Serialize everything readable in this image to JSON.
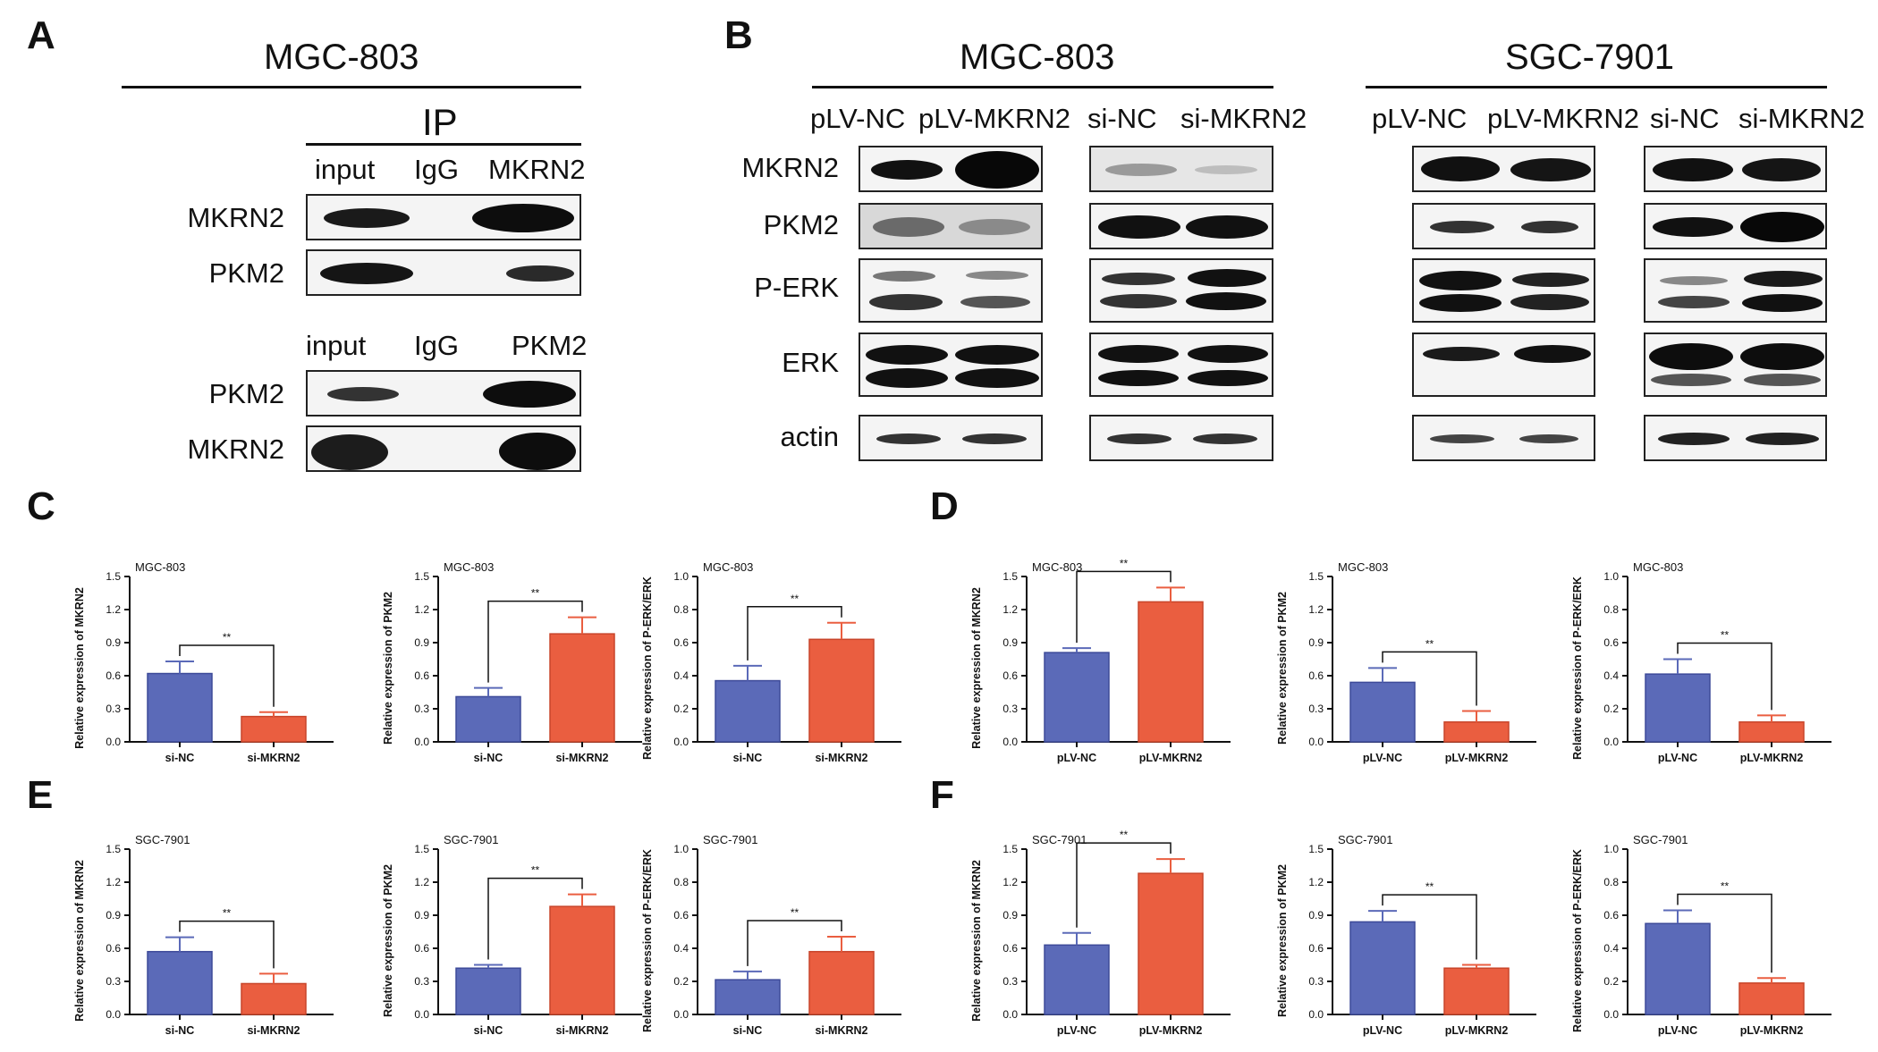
{
  "panel_labels": {
    "a": "A",
    "b": "B",
    "c": "C",
    "d": "D",
    "e": "E",
    "f": "F"
  },
  "panel_a": {
    "title": "MGC-803",
    "ip_label": "IP",
    "top": {
      "lanes": [
        "input",
        "IgG",
        "MKRN2"
      ],
      "rows": [
        "MKRN2",
        "PKM2"
      ]
    },
    "bottom": {
      "lanes": [
        "input",
        "IgG",
        "PKM2"
      ],
      "rows": [
        "PKM2",
        "MKRN2"
      ]
    }
  },
  "panel_b": {
    "groups": [
      {
        "title": "MGC-803",
        "lanes": [
          "pLV-NC",
          "pLV-MKRN2",
          "si-NC",
          "si-MKRN2"
        ]
      },
      {
        "title": "SGC-7901",
        "lanes": [
          "pLV-NC",
          "pLV-MKRN2",
          "si-NC",
          "si-MKRN2"
        ]
      }
    ],
    "rows": [
      "MKRN2",
      "PKM2",
      "P-ERK",
      "ERK",
      "actin"
    ]
  },
  "colors": {
    "blue": "#5b6ab8",
    "red": "#ea5e40",
    "axis": "#111111"
  },
  "chart_data": [
    {
      "type": "bar",
      "panel": "C",
      "title": "MGC-803",
      "ylabel": "Relative expression of MKRN2",
      "categories": [
        "si-NC",
        "si-MKRN2"
      ],
      "values": [
        0.62,
        0.23
      ],
      "errors": [
        0.11,
        0.04
      ],
      "ylim": [
        0,
        1.5
      ],
      "yticks": [
        "0.0",
        "0.3",
        "0.6",
        "0.9",
        "1.2",
        "1.5"
      ],
      "sig": "**"
    },
    {
      "type": "bar",
      "panel": "C",
      "title": "MGC-803",
      "ylabel": "Relative expression of PKM2",
      "categories": [
        "si-NC",
        "si-MKRN2"
      ],
      "values": [
        0.41,
        0.98
      ],
      "errors": [
        0.08,
        0.15
      ],
      "ylim": [
        0,
        1.5
      ],
      "yticks": [
        "0.0",
        "0.3",
        "0.6",
        "0.9",
        "1.2",
        "1.5"
      ],
      "sig": "**"
    },
    {
      "type": "bar",
      "panel": "C",
      "title": "MGC-803",
      "ylabel": "Relative expression of P-ERK/ERK",
      "categories": [
        "si-NC",
        "si-MKRN2"
      ],
      "values": [
        0.37,
        0.62
      ],
      "errors": [
        0.09,
        0.1
      ],
      "ylim": [
        0,
        1.0
      ],
      "yticks": [
        "0.0",
        "0.2",
        "0.4",
        "0.6",
        "0.8",
        "1.0"
      ],
      "sig": "**"
    },
    {
      "type": "bar",
      "panel": "D",
      "title": "MGC-803",
      "ylabel": "Relative expression of MKRN2",
      "categories": [
        "pLV-NC",
        "pLV-MKRN2"
      ],
      "values": [
        0.81,
        1.27
      ],
      "errors": [
        0.04,
        0.13
      ],
      "ylim": [
        0,
        1.5
      ],
      "yticks": [
        "0.0",
        "0.3",
        "0.6",
        "0.9",
        "1.2",
        "1.5"
      ],
      "sig": "**"
    },
    {
      "type": "bar",
      "panel": "D",
      "title": "MGC-803",
      "ylabel": "Relative expression of PKM2",
      "categories": [
        "pLV-NC",
        "pLV-MKRN2"
      ],
      "values": [
        0.54,
        0.18
      ],
      "errors": [
        0.13,
        0.1
      ],
      "ylim": [
        0,
        1.5
      ],
      "yticks": [
        "0.0",
        "0.3",
        "0.6",
        "0.9",
        "1.2",
        "1.5"
      ],
      "sig": "**"
    },
    {
      "type": "bar",
      "panel": "D",
      "title": "MGC-803",
      "ylabel": "Relative expression of P-ERK/ERK",
      "categories": [
        "pLV-NC",
        "pLV-MKRN2"
      ],
      "values": [
        0.41,
        0.12
      ],
      "errors": [
        0.09,
        0.04
      ],
      "ylim": [
        0,
        1.0
      ],
      "yticks": [
        "0.0",
        "0.2",
        "0.4",
        "0.6",
        "0.8",
        "1.0"
      ],
      "sig": "**"
    },
    {
      "type": "bar",
      "panel": "E",
      "title": "SGC-7901",
      "ylabel": "Relative expression of MKRN2",
      "categories": [
        "si-NC",
        "si-MKRN2"
      ],
      "values": [
        0.57,
        0.28
      ],
      "errors": [
        0.13,
        0.09
      ],
      "ylim": [
        0,
        1.5
      ],
      "yticks": [
        "0.0",
        "0.3",
        "0.6",
        "0.9",
        "1.2",
        "1.5"
      ],
      "sig": "**"
    },
    {
      "type": "bar",
      "panel": "E",
      "title": "SGC-7901",
      "ylabel": "Relative expression of PKM2",
      "categories": [
        "si-NC",
        "si-MKRN2"
      ],
      "values": [
        0.42,
        0.98
      ],
      "errors": [
        0.03,
        0.11
      ],
      "ylim": [
        0,
        1.5
      ],
      "yticks": [
        "0.0",
        "0.3",
        "0.6",
        "0.9",
        "1.2",
        "1.5"
      ],
      "sig": "**"
    },
    {
      "type": "bar",
      "panel": "E",
      "title": "SGC-7901",
      "ylabel": "Relative expression of P-ERK/ERK",
      "categories": [
        "si-NC",
        "si-MKRN2"
      ],
      "values": [
        0.21,
        0.38
      ],
      "errors": [
        0.05,
        0.09
      ],
      "ylim": [
        0,
        1.0
      ],
      "yticks": [
        "0.0",
        "0.2",
        "0.4",
        "0.6",
        "0.8",
        "1.0"
      ],
      "sig": "**"
    },
    {
      "type": "bar",
      "panel": "F",
      "title": "SGC-7901",
      "ylabel": "Relative expression of MKRN2",
      "categories": [
        "pLV-NC",
        "pLV-MKRN2"
      ],
      "values": [
        0.63,
        1.28
      ],
      "errors": [
        0.11,
        0.13
      ],
      "ylim": [
        0,
        1.5
      ],
      "yticks": [
        "0.0",
        "0.3",
        "0.6",
        "0.9",
        "1.2",
        "1.5"
      ],
      "sig": "**"
    },
    {
      "type": "bar",
      "panel": "F",
      "title": "SGC-7901",
      "ylabel": "Relative expression of PKM2",
      "categories": [
        "pLV-NC",
        "pLV-MKRN2"
      ],
      "values": [
        0.84,
        0.42
      ],
      "errors": [
        0.1,
        0.03
      ],
      "ylim": [
        0,
        1.5
      ],
      "yticks": [
        "0.0",
        "0.3",
        "0.6",
        "0.9",
        "1.2",
        "1.5"
      ],
      "sig": "**"
    },
    {
      "type": "bar",
      "panel": "F",
      "title": "SGC-7901",
      "ylabel": "Relative expression of P-ERK/ERK",
      "categories": [
        "pLV-NC",
        "pLV-MKRN2"
      ],
      "values": [
        0.55,
        0.19
      ],
      "errors": [
        0.08,
        0.03
      ],
      "ylim": [
        0,
        1.0
      ],
      "yticks": [
        "0.0",
        "0.2",
        "0.4",
        "0.6",
        "0.8",
        "1.0"
      ],
      "sig": "**"
    }
  ]
}
